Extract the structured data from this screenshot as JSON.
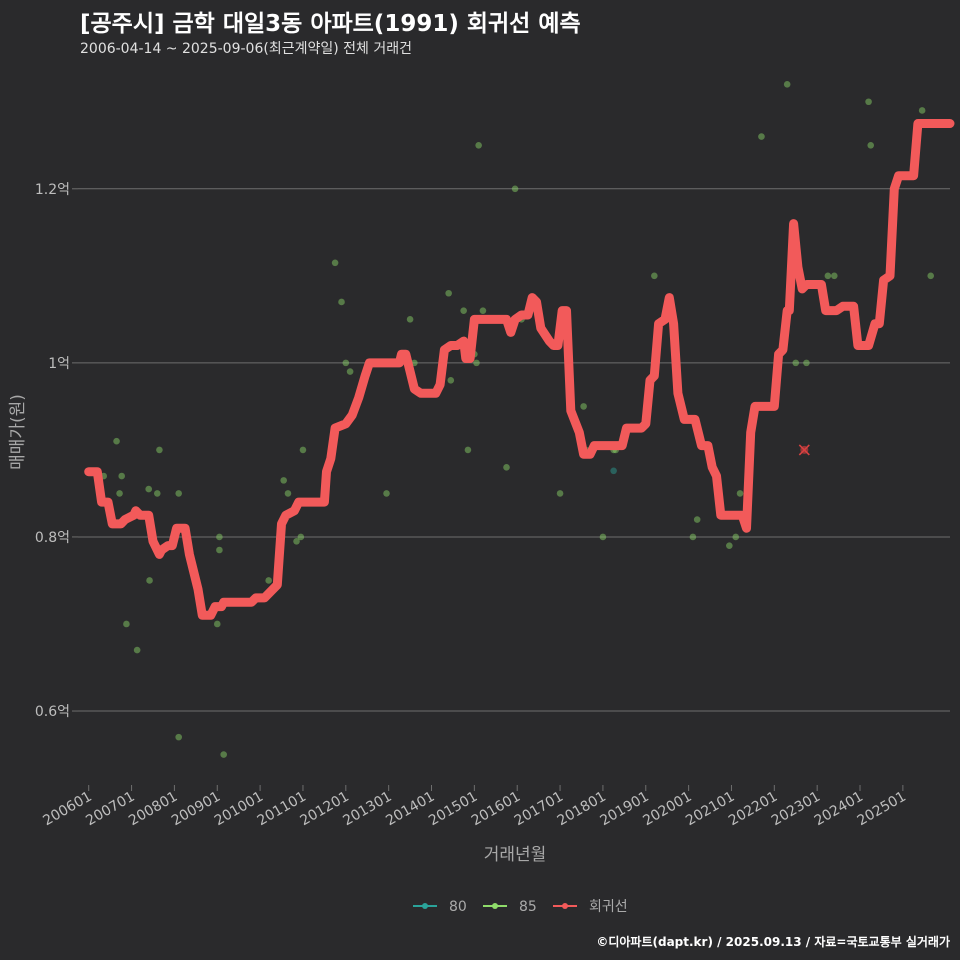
{
  "title": "[공주시] 금학 대일3동 아파트(1991) 회귀선 예측",
  "subtitle": "2006-04-14 ~ 2025-09-06(최근계약일) 전체 거래건",
  "credit": "©디아파트(dapt.kr) / 2025.09.13 / 자료=국토교통부 실거래가",
  "colors": {
    "s80": "#2aa39a",
    "s85": "#8fdc6a",
    "regression": "#f25a5a",
    "grid": "#6e6e6e",
    "marker": "#d84040"
  },
  "chart_data": {
    "type": "scatter",
    "title": "[공주시] 금학 대일3동 아파트(1991) 회귀선 예측",
    "xlabel": "거래년월",
    "ylabel": "매매가(원)",
    "x_unit": "year (decimal)",
    "y_unit": "억",
    "xlim": [
      2005.75,
      2026.1
    ],
    "ylim": [
      0.515,
      1.325
    ],
    "y_ticks": [
      {
        "value": 0.6,
        "label": "0.6억"
      },
      {
        "value": 0.8,
        "label": "0.8억"
      },
      {
        "value": 1.0,
        "label": "1억"
      },
      {
        "value": 1.2,
        "label": "1.2억"
      }
    ],
    "x_ticks": [
      {
        "value": 2006.0,
        "label": "200601"
      },
      {
        "value": 2007.0,
        "label": "200701"
      },
      {
        "value": 2008.0,
        "label": "200801"
      },
      {
        "value": 2009.0,
        "label": "200901"
      },
      {
        "value": 2010.0,
        "label": "201001"
      },
      {
        "value": 2011.0,
        "label": "201101"
      },
      {
        "value": 2012.0,
        "label": "201201"
      },
      {
        "value": 2013.0,
        "label": "201301"
      },
      {
        "value": 2014.0,
        "label": "201401"
      },
      {
        "value": 2015.0,
        "label": "201501"
      },
      {
        "value": 2016.0,
        "label": "201601"
      },
      {
        "value": 2017.0,
        "label": "201701"
      },
      {
        "value": 2018.0,
        "label": "201801"
      },
      {
        "value": 2019.0,
        "label": "201901"
      },
      {
        "value": 2020.0,
        "label": "202001"
      },
      {
        "value": 2021.0,
        "label": "202101"
      },
      {
        "value": 2022.0,
        "label": "202201"
      },
      {
        "value": 2023.0,
        "label": "202301"
      },
      {
        "value": 2024.0,
        "label": "202401"
      },
      {
        "value": 2025.0,
        "label": "202501"
      }
    ],
    "legend": [
      {
        "key": "s80",
        "label": "80"
      },
      {
        "key": "s85",
        "label": "85"
      },
      {
        "key": "regression",
        "label": "회귀선"
      }
    ],
    "legend_position": "bottom",
    "series": [
      {
        "name": "80",
        "key": "s80",
        "kind": "points",
        "points": [
          [
            2018.25,
            0.876
          ]
        ]
      },
      {
        "name": "85",
        "key": "s85",
        "kind": "points",
        "points": [
          [
            2006.35,
            0.87
          ],
          [
            2006.65,
            0.91
          ],
          [
            2006.72,
            0.85
          ],
          [
            2006.77,
            0.87
          ],
          [
            2006.88,
            0.7
          ],
          [
            2007.13,
            0.67
          ],
          [
            2007.4,
            0.855
          ],
          [
            2007.42,
            0.75
          ],
          [
            2007.6,
            0.85
          ],
          [
            2007.65,
            0.9
          ],
          [
            2008.1,
            0.85
          ],
          [
            2008.1,
            0.57
          ],
          [
            2009.0,
            0.7
          ],
          [
            2009.05,
            0.8
          ],
          [
            2009.05,
            0.785
          ],
          [
            2009.15,
            0.55
          ],
          [
            2010.2,
            0.75
          ],
          [
            2010.55,
            0.865
          ],
          [
            2010.65,
            0.85
          ],
          [
            2010.85,
            0.795
          ],
          [
            2010.95,
            0.8
          ],
          [
            2011.0,
            0.9
          ],
          [
            2011.75,
            1.115
          ],
          [
            2011.9,
            1.07
          ],
          [
            2012.0,
            1.0
          ],
          [
            2012.1,
            0.99
          ],
          [
            2012.95,
            0.85
          ],
          [
            2013.5,
            1.05
          ],
          [
            2013.6,
            1.0
          ],
          [
            2014.4,
            1.08
          ],
          [
            2014.45,
            0.98
          ],
          [
            2014.75,
            1.06
          ],
          [
            2014.85,
            0.9
          ],
          [
            2015.0,
            1.01
          ],
          [
            2015.05,
            1.0
          ],
          [
            2015.1,
            1.25
          ],
          [
            2015.2,
            1.06
          ],
          [
            2015.6,
            1.05
          ],
          [
            2015.75,
            0.88
          ],
          [
            2015.95,
            1.2
          ],
          [
            2016.1,
            1.05
          ],
          [
            2017.0,
            0.85
          ],
          [
            2017.55,
            0.95
          ],
          [
            2017.6,
            0.9
          ],
          [
            2018.0,
            0.8
          ],
          [
            2018.25,
            0.9
          ],
          [
            2018.3,
            0.9
          ],
          [
            2019.2,
            1.1
          ],
          [
            2020.1,
            0.8
          ],
          [
            2020.2,
            0.82
          ],
          [
            2020.7,
            0.85
          ],
          [
            2020.95,
            0.79
          ],
          [
            2021.1,
            0.8
          ],
          [
            2021.2,
            0.85
          ],
          [
            2021.7,
            1.26
          ],
          [
            2022.3,
            1.32
          ],
          [
            2022.5,
            1.0
          ],
          [
            2022.75,
            1.0
          ],
          [
            2023.25,
            1.1
          ],
          [
            2023.4,
            1.1
          ],
          [
            2024.2,
            1.3
          ],
          [
            2024.25,
            1.25
          ],
          [
            2025.45,
            1.29
          ],
          [
            2025.65,
            1.1
          ]
        ]
      },
      {
        "name": "회귀선",
        "key": "regression",
        "kind": "line",
        "points": [
          [
            2006.0,
            0.875
          ],
          [
            2006.2,
            0.875
          ],
          [
            2006.3,
            0.84
          ],
          [
            2006.45,
            0.84
          ],
          [
            2006.55,
            0.815
          ],
          [
            2006.75,
            0.815
          ],
          [
            2006.85,
            0.82
          ],
          [
            2007.05,
            0.825
          ],
          [
            2007.1,
            0.83
          ],
          [
            2007.2,
            0.825
          ],
          [
            2007.4,
            0.825
          ],
          [
            2007.5,
            0.795
          ],
          [
            2007.65,
            0.78
          ],
          [
            2007.7,
            0.785
          ],
          [
            2007.85,
            0.79
          ],
          [
            2007.95,
            0.79
          ],
          [
            2008.05,
            0.81
          ],
          [
            2008.25,
            0.81
          ],
          [
            2008.35,
            0.78
          ],
          [
            2008.45,
            0.76
          ],
          [
            2008.55,
            0.74
          ],
          [
            2008.65,
            0.71
          ],
          [
            2008.85,
            0.71
          ],
          [
            2008.95,
            0.72
          ],
          [
            2009.1,
            0.72
          ],
          [
            2009.15,
            0.725
          ],
          [
            2009.8,
            0.725
          ],
          [
            2009.9,
            0.73
          ],
          [
            2010.1,
            0.73
          ],
          [
            2010.3,
            0.74
          ],
          [
            2010.4,
            0.745
          ],
          [
            2010.5,
            0.815
          ],
          [
            2010.6,
            0.825
          ],
          [
            2010.8,
            0.83
          ],
          [
            2010.9,
            0.84
          ],
          [
            2011.5,
            0.84
          ],
          [
            2011.55,
            0.875
          ],
          [
            2011.65,
            0.89
          ],
          [
            2011.75,
            0.925
          ],
          [
            2012.0,
            0.93
          ],
          [
            2012.15,
            0.94
          ],
          [
            2012.3,
            0.96
          ],
          [
            2012.45,
            0.985
          ],
          [
            2012.55,
            1.0
          ],
          [
            2013.2,
            1.0
          ],
          [
            2013.25,
            1.0
          ],
          [
            2013.3,
            1.01
          ],
          [
            2013.4,
            1.01
          ],
          [
            2013.5,
            0.99
          ],
          [
            2013.6,
            0.97
          ],
          [
            2013.75,
            0.965
          ],
          [
            2014.1,
            0.965
          ],
          [
            2014.2,
            0.975
          ],
          [
            2014.3,
            1.015
          ],
          [
            2014.45,
            1.02
          ],
          [
            2014.6,
            1.02
          ],
          [
            2014.75,
            1.025
          ],
          [
            2014.8,
            1.005
          ],
          [
            2014.9,
            1.005
          ],
          [
            2015.0,
            1.05
          ],
          [
            2015.5,
            1.05
          ],
          [
            2015.75,
            1.05
          ],
          [
            2015.85,
            1.035
          ],
          [
            2015.95,
            1.05
          ],
          [
            2016.1,
            1.055
          ],
          [
            2016.25,
            1.055
          ],
          [
            2016.35,
            1.075
          ],
          [
            2016.45,
            1.07
          ],
          [
            2016.55,
            1.04
          ],
          [
            2016.75,
            1.025
          ],
          [
            2016.85,
            1.02
          ],
          [
            2016.95,
            1.02
          ],
          [
            2017.05,
            1.06
          ],
          [
            2017.15,
            1.06
          ],
          [
            2017.25,
            0.945
          ],
          [
            2017.45,
            0.92
          ],
          [
            2017.55,
            0.895
          ],
          [
            2017.7,
            0.895
          ],
          [
            2017.8,
            0.905
          ],
          [
            2018.2,
            0.905
          ],
          [
            2018.45,
            0.905
          ],
          [
            2018.55,
            0.925
          ],
          [
            2018.9,
            0.925
          ],
          [
            2019.0,
            0.93
          ],
          [
            2019.1,
            0.98
          ],
          [
            2019.2,
            0.985
          ],
          [
            2019.3,
            1.045
          ],
          [
            2019.45,
            1.05
          ],
          [
            2019.55,
            1.075
          ],
          [
            2019.65,
            1.045
          ],
          [
            2019.75,
            0.965
          ],
          [
            2019.9,
            0.935
          ],
          [
            2020.15,
            0.935
          ],
          [
            2020.3,
            0.905
          ],
          [
            2020.45,
            0.905
          ],
          [
            2020.55,
            0.88
          ],
          [
            2020.65,
            0.87
          ],
          [
            2020.75,
            0.825
          ],
          [
            2021.25,
            0.825
          ],
          [
            2021.35,
            0.81
          ],
          [
            2021.45,
            0.92
          ],
          [
            2021.55,
            0.95
          ],
          [
            2022.0,
            0.95
          ],
          [
            2022.1,
            1.01
          ],
          [
            2022.2,
            1.015
          ],
          [
            2022.3,
            1.06
          ],
          [
            2022.35,
            1.06
          ],
          [
            2022.45,
            1.16
          ],
          [
            2022.55,
            1.11
          ],
          [
            2022.65,
            1.085
          ],
          [
            2022.75,
            1.09
          ],
          [
            2023.1,
            1.09
          ],
          [
            2023.2,
            1.06
          ],
          [
            2023.45,
            1.06
          ],
          [
            2023.6,
            1.065
          ],
          [
            2023.85,
            1.065
          ],
          [
            2023.95,
            1.02
          ],
          [
            2024.2,
            1.02
          ],
          [
            2024.35,
            1.045
          ],
          [
            2024.45,
            1.045
          ],
          [
            2024.55,
            1.095
          ],
          [
            2024.7,
            1.1
          ],
          [
            2024.8,
            1.2
          ],
          [
            2024.9,
            1.215
          ],
          [
            2025.25,
            1.215
          ],
          [
            2025.35,
            1.275
          ],
          [
            2025.95,
            1.275
          ],
          [
            2026.1,
            1.275
          ]
        ]
      }
    ],
    "annotation_marker": {
      "x": 2022.7,
      "y": 0.9,
      "symbol": "x"
    }
  }
}
